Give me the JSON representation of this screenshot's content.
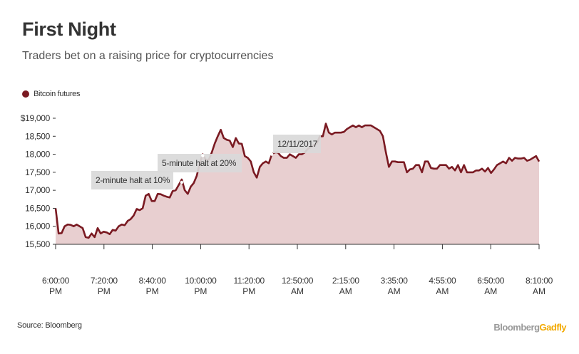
{
  "title": "First Night",
  "subtitle": "Traders bet on a raising price for cryptocurrencies",
  "source": "Source: Bloomberg",
  "logo": {
    "part1": "Bloomberg",
    "part2": "Gadfly"
  },
  "colors": {
    "line": "#7a1a22",
    "area": "#e8cfd0",
    "accent": "#f2a900",
    "axis": "#333333"
  },
  "chart_data": {
    "type": "area",
    "legend": [
      "Bitcoin futures"
    ],
    "legend_position": "top-left",
    "grid": false,
    "ylim": [
      15500,
      19000
    ],
    "y_ticks": [
      {
        "value": 19000,
        "label": "$19,000"
      },
      {
        "value": 18500,
        "label": "18,500"
      },
      {
        "value": 18000,
        "label": "18,000"
      },
      {
        "value": 17500,
        "label": "17,500"
      },
      {
        "value": 17000,
        "label": "17,000"
      },
      {
        "value": 16500,
        "label": "16,500"
      },
      {
        "value": 16000,
        "label": "16,000"
      },
      {
        "value": 15500,
        "label": "15,500"
      }
    ],
    "x_ticks": [
      {
        "line1": "6:00:00",
        "line2": "PM"
      },
      {
        "line1": "7:20:00",
        "line2": "PM"
      },
      {
        "line1": "8:40:00",
        "line2": "PM"
      },
      {
        "line1": "10:00:00",
        "line2": "PM"
      },
      {
        "line1": "11:20:00",
        "line2": "PM"
      },
      {
        "line1": "12:50:00",
        "line2": "AM"
      },
      {
        "line1": "2:15:00",
        "line2": "AM"
      },
      {
        "line1": "3:35:00",
        "line2": "AM"
      },
      {
        "line1": "4:55:00",
        "line2": "AM"
      },
      {
        "line1": "6:50:00",
        "line2": "AM"
      },
      {
        "line1": "8:10:00",
        "line2": "AM"
      }
    ],
    "series": [
      {
        "name": "Bitcoin futures",
        "values": [
          16500,
          15800,
          15810,
          16000,
          16050,
          16040,
          16000,
          16050,
          16000,
          15950,
          15700,
          15680,
          15800,
          15700,
          15950,
          15800,
          15850,
          15830,
          15780,
          15900,
          15880,
          16000,
          16050,
          16030,
          16150,
          16200,
          16300,
          16480,
          16450,
          16500,
          16850,
          16900,
          16700,
          16700,
          16900,
          16890,
          16850,
          16820,
          16800,
          16980,
          17000,
          17150,
          17300,
          17000,
          16900,
          17100,
          17200,
          17400,
          17750,
          18000,
          17850,
          17850,
          18050,
          18300,
          18500,
          18680,
          18450,
          18400,
          18380,
          18200,
          18450,
          18300,
          18290,
          17950,
          17900,
          17800,
          17500,
          17350,
          17650,
          17750,
          17800,
          17750,
          18000,
          18050,
          18050,
          17950,
          17900,
          17900,
          18000,
          17950,
          17900,
          18000,
          18000,
          18050,
          18150,
          18200,
          18250,
          18300,
          18500,
          18500,
          18850,
          18600,
          18550,
          18600,
          18600,
          18600,
          18620,
          18700,
          18750,
          18800,
          18750,
          18800,
          18750,
          18800,
          18800,
          18800,
          18750,
          18700,
          18650,
          18500,
          18050,
          17650,
          17800,
          17800,
          17780,
          17780,
          17780,
          17500,
          17580,
          17600,
          17700,
          17700,
          17500,
          17800,
          17800,
          17620,
          17600,
          17600,
          17700,
          17700,
          17700,
          17600,
          17650,
          17550,
          17700,
          17500,
          17700,
          17500,
          17500,
          17500,
          17550,
          17550,
          17600,
          17520,
          17620,
          17480,
          17580,
          17700,
          17750,
          17800,
          17750,
          17900,
          17820,
          17900,
          17880,
          17880,
          17900,
          17820,
          17850,
          17900,
          17950,
          17800
        ]
      }
    ],
    "annotations": [
      {
        "text": "2-minute halt at 10%"
      },
      {
        "text": "5-minute halt at 20%"
      },
      {
        "text": "12/11/2017"
      }
    ]
  }
}
